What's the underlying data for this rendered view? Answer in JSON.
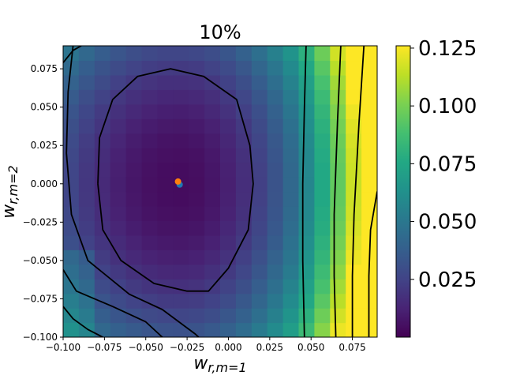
{
  "chart_data": {
    "type": "heatmap",
    "title": "10%",
    "xlabel": "w_{r,m=1}",
    "ylabel": "w_{r,m=2}",
    "xlim": [
      -0.1,
      0.09
    ],
    "ylim": [
      -0.1,
      0.09
    ],
    "xticks": [
      -0.1,
      -0.075,
      -0.05,
      -0.025,
      0.0,
      0.025,
      0.05,
      0.075
    ],
    "xtick_labels": [
      "−0.100",
      "−0.075",
      "−0.050",
      "−0.025",
      "0.000",
      "0.025",
      "0.050",
      "0.075"
    ],
    "yticks": [
      -0.1,
      -0.075,
      -0.05,
      -0.025,
      0.0,
      0.025,
      0.05,
      0.075
    ],
    "ytick_labels": [
      "−0.100",
      "−0.075",
      "−0.050",
      "−0.025",
      "0.000",
      "0.025",
      "0.050",
      "0.075"
    ],
    "colorbar": {
      "colormap": "viridis",
      "range": [
        0.0,
        0.126
      ],
      "ticks": [
        0.025,
        0.05,
        0.075,
        0.1,
        0.125
      ],
      "tick_labels": [
        "0.025",
        "0.050",
        "0.075",
        "0.100",
        "0.125"
      ]
    },
    "grid": false,
    "heatmap_grid": {
      "nx": 20,
      "ny": 20,
      "center": [
        -0.03,
        0.0
      ],
      "note_values": "cell value = loss, min near center"
    },
    "contours": [
      {
        "points": [
          [
            -0.079,
            0.0
          ],
          [
            -0.078,
            0.03
          ],
          [
            -0.07,
            0.055
          ],
          [
            -0.055,
            0.07
          ],
          [
            -0.035,
            0.075
          ],
          [
            -0.015,
            0.07
          ],
          [
            0.005,
            0.055
          ],
          [
            0.013,
            0.025
          ],
          [
            0.015,
            0.0
          ],
          [
            0.012,
            -0.03
          ],
          [
            0.0,
            -0.055
          ],
          [
            -0.012,
            -0.07
          ],
          [
            -0.025,
            -0.07
          ],
          [
            -0.045,
            -0.065
          ],
          [
            -0.065,
            -0.05
          ],
          [
            -0.076,
            -0.03
          ],
          [
            -0.079,
            0.0
          ]
        ]
      },
      {
        "points": [
          [
            -0.094,
            0.09
          ],
          [
            -0.097,
            0.06
          ],
          [
            -0.098,
            0.02
          ],
          [
            -0.095,
            -0.02
          ],
          [
            -0.085,
            -0.05
          ],
          [
            -0.06,
            -0.072
          ],
          [
            -0.04,
            -0.082
          ],
          [
            -0.02,
            -0.098
          ],
          [
            -0.018,
            -0.1
          ]
        ]
      },
      {
        "points": [
          [
            -0.1,
            0.079
          ],
          [
            -0.094,
            0.087
          ],
          [
            -0.089,
            0.09
          ]
        ]
      },
      {
        "points": [
          [
            -0.1,
            -0.056
          ],
          [
            -0.092,
            -0.07
          ],
          [
            -0.07,
            -0.08
          ],
          [
            -0.05,
            -0.09
          ],
          [
            -0.04,
            -0.1
          ]
        ]
      },
      {
        "points": [
          [
            -0.1,
            -0.08
          ],
          [
            -0.094,
            -0.088
          ],
          [
            -0.085,
            -0.095
          ],
          [
            -0.076,
            -0.1
          ]
        ]
      },
      {
        "points": [
          [
            0.047,
            0.09
          ],
          [
            0.046,
            0.05
          ],
          [
            0.045,
            0.0
          ],
          [
            0.045,
            -0.05
          ],
          [
            0.046,
            -0.1
          ]
        ]
      },
      {
        "points": [
          [
            0.068,
            0.09
          ],
          [
            0.066,
            0.04
          ],
          [
            0.064,
            -0.02
          ],
          [
            0.064,
            -0.06
          ],
          [
            0.065,
            -0.1
          ]
        ]
      },
      {
        "points": [
          [
            0.082,
            0.09
          ],
          [
            0.079,
            0.04
          ],
          [
            0.076,
            -0.02
          ],
          [
            0.075,
            -0.06
          ],
          [
            0.075,
            -0.1
          ]
        ]
      },
      {
        "points": [
          [
            0.09,
            -0.005
          ],
          [
            0.086,
            -0.03
          ],
          [
            0.085,
            -0.06
          ],
          [
            0.085,
            -0.1
          ]
        ]
      }
    ],
    "points": [
      {
        "x": -0.0305,
        "y": 0.0015,
        "color": "#ff7f0e"
      },
      {
        "x": -0.0295,
        "y": -0.0005,
        "color": "#1f77b4"
      }
    ]
  }
}
